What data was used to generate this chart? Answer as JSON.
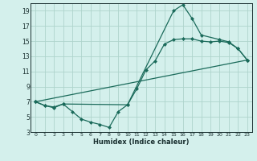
{
  "xlabel": "Humidex (Indice chaleur)",
  "background_color": "#d4f0ec",
  "grid_color": "#aed4cc",
  "line_color": "#1a6a5a",
  "xlim": [
    -0.5,
    23.5
  ],
  "ylim": [
    3,
    20
  ],
  "yticks": [
    3,
    5,
    7,
    9,
    11,
    13,
    15,
    17,
    19
  ],
  "xticks": [
    0,
    1,
    2,
    3,
    4,
    5,
    6,
    7,
    8,
    9,
    10,
    11,
    12,
    13,
    14,
    15,
    16,
    17,
    18,
    19,
    20,
    21,
    22,
    23
  ],
  "line1_x": [
    0,
    1,
    2,
    3,
    4,
    5,
    6,
    7,
    8,
    9,
    10,
    11,
    12,
    13,
    14,
    15,
    16,
    17,
    18,
    19,
    20,
    21,
    22,
    23
  ],
  "line1_y": [
    7.0,
    6.5,
    6.3,
    6.7,
    5.7,
    4.7,
    4.3,
    4.0,
    3.6,
    5.7,
    6.6,
    8.7,
    11.2,
    12.4,
    14.6,
    15.2,
    15.3,
    15.3,
    15.0,
    14.9,
    15.0,
    14.8,
    14.0,
    12.5
  ],
  "line2_x": [
    0,
    1,
    2,
    3,
    10,
    15,
    16,
    17,
    18,
    20,
    21,
    22,
    23
  ],
  "line2_y": [
    7.0,
    6.5,
    6.2,
    6.7,
    6.6,
    19.0,
    19.8,
    18.0,
    15.8,
    15.2,
    14.9,
    14.0,
    12.5
  ],
  "line3_x": [
    0,
    23
  ],
  "line3_y": [
    7.0,
    12.5
  ]
}
